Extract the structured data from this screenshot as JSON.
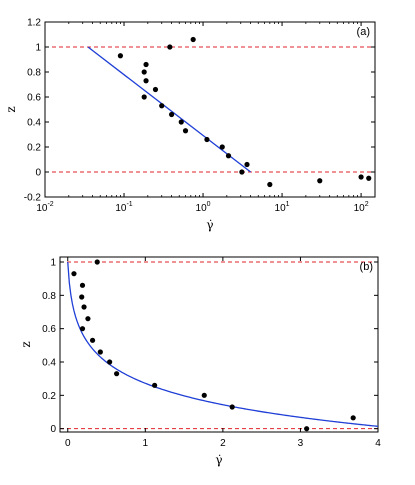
{
  "chart_data": [
    {
      "type": "scatter",
      "panel_label": "(a)",
      "xlabel": "γ̇",
      "ylabel": "z",
      "xscale": "log",
      "xlim": [
        0.01,
        150
      ],
      "ylim": [
        -0.2,
        1.2
      ],
      "xticks": [
        0.01,
        0.1,
        1,
        10,
        100
      ],
      "xtick_labels": [
        "10",
        "10",
        "10",
        "10",
        "10"
      ],
      "xtick_exponents": [
        "-2",
        "-1",
        "0",
        "1",
        "2"
      ],
      "yticks": [
        -0.2,
        0,
        0.2,
        0.4,
        0.6,
        0.8,
        1,
        1.2
      ],
      "ytick_labels": [
        "-0.2",
        "0",
        "0.2",
        "0.4",
        "0.6",
        "0.8",
        "1",
        "1.2"
      ],
      "reference_lines": [
        {
          "y": 1,
          "color": "#e0262b",
          "style": "dashed"
        },
        {
          "y": 0,
          "color": "#e0262b",
          "style": "dashed"
        }
      ],
      "points": [
        {
          "x": 0.09,
          "y": 0.93
        },
        {
          "x": 0.19,
          "y": 0.86
        },
        {
          "x": 0.18,
          "y": 0.8
        },
        {
          "x": 0.19,
          "y": 0.73
        },
        {
          "x": 0.25,
          "y": 0.66
        },
        {
          "x": 0.18,
          "y": 0.6
        },
        {
          "x": 0.3,
          "y": 0.53
        },
        {
          "x": 0.4,
          "y": 0.46
        },
        {
          "x": 0.53,
          "y": 0.4
        },
        {
          "x": 0.6,
          "y": 0.33
        },
        {
          "x": 1.12,
          "y": 0.26
        },
        {
          "x": 1.75,
          "y": 0.2
        },
        {
          "x": 2.1,
          "y": 0.13
        },
        {
          "x": 3.6,
          "y": 0.06
        },
        {
          "x": 3.1,
          "y": 0.0
        },
        {
          "x": 0.38,
          "y": 1.0
        },
        {
          "x": 0.75,
          "y": 1.06
        },
        {
          "x": 7.0,
          "y": -0.1
        },
        {
          "x": 30,
          "y": -0.07
        },
        {
          "x": 100,
          "y": -0.04
        },
        {
          "x": 125,
          "y": -0.05
        }
      ],
      "fit_line": [
        {
          "x": 0.035,
          "y": 1.0
        },
        {
          "x": 4.0,
          "y": 0.0
        }
      ],
      "colors": {
        "points": "#000000",
        "fit": "#1f3fd6",
        "reference": "#e0262b"
      }
    },
    {
      "type": "scatter",
      "panel_label": "(b)",
      "xlabel": "γ̇",
      "ylabel": "z",
      "xscale": "linear",
      "xlim": [
        -0.1,
        4
      ],
      "ylim": [
        -0.02,
        1.03
      ],
      "xticks": [
        0,
        1,
        2,
        3,
        4
      ],
      "xtick_labels": [
        "0",
        "1",
        "2",
        "3",
        "4"
      ],
      "yticks": [
        0,
        0.2,
        0.4,
        0.6,
        0.8,
        1
      ],
      "ytick_labels": [
        "0",
        "0.2",
        "0.4",
        "0.6",
        "0.8",
        "1"
      ],
      "reference_lines": [
        {
          "y": 1,
          "color": "#e0262b",
          "style": "dashed"
        },
        {
          "y": 0,
          "color": "#e0262b",
          "style": "dashed"
        }
      ],
      "points": [
        {
          "x": 0.08,
          "y": 0.93
        },
        {
          "x": 0.19,
          "y": 0.86
        },
        {
          "x": 0.18,
          "y": 0.79
        },
        {
          "x": 0.21,
          "y": 0.73
        },
        {
          "x": 0.26,
          "y": 0.66
        },
        {
          "x": 0.19,
          "y": 0.6
        },
        {
          "x": 0.32,
          "y": 0.53
        },
        {
          "x": 0.42,
          "y": 0.46
        },
        {
          "x": 0.54,
          "y": 0.4
        },
        {
          "x": 0.63,
          "y": 0.33
        },
        {
          "x": 1.12,
          "y": 0.26
        },
        {
          "x": 1.76,
          "y": 0.2
        },
        {
          "x": 2.12,
          "y": 0.13
        },
        {
          "x": 3.68,
          "y": 0.065
        },
        {
          "x": 3.08,
          "y": 0.0
        },
        {
          "x": 0.38,
          "y": 1.0
        }
      ],
      "fit_curve": {
        "form": "z = 1 - a*ln(1 + x/b)",
        "a": 0.1885,
        "b": 0.0215,
        "x_range": [
          0.0,
          4.0
        ]
      },
      "colors": {
        "points": "#000000",
        "fit": "#1f3fd6",
        "reference": "#e0262b"
      }
    }
  ]
}
